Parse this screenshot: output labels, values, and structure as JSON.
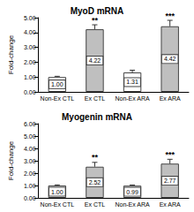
{
  "chart_data": [
    {
      "type": "bar",
      "title": "MyoD mRNA",
      "y_label": "Fold-change",
      "categories": [
        "Non-Ex CTL",
        "Ex CTL",
        "Non-Ex ARA",
        "Ex ARA"
      ],
      "values": [
        1.0,
        4.22,
        1.31,
        4.42
      ],
      "value_labels": [
        "1.00",
        "4.22",
        "1.31",
        "4.42"
      ],
      "errors": [
        0.05,
        0.3,
        0.15,
        0.4
      ],
      "annotations": [
        null,
        "**",
        null,
        "***"
      ],
      "colors": [
        "#ffffff",
        "#bfbfbf",
        "#ffffff",
        "#bfbfbf"
      ],
      "ylim": [
        0,
        5
      ],
      "yticks": [
        {
          "value": 0,
          "label": "0.00"
        },
        {
          "value": 1,
          "label": "1.00"
        },
        {
          "value": 2,
          "label": "2.00"
        },
        {
          "value": 3,
          "label": "3.00"
        },
        {
          "value": 4,
          "label": "4.00"
        },
        {
          "value": 5,
          "label": "5.00"
        }
      ],
      "grid": false,
      "data_labels": true
    },
    {
      "type": "bar",
      "title": "Myogenin mRNA",
      "y_label": "Fold-change",
      "categories": [
        "Non-Ex CTL",
        "Ex CTL",
        "Non-Ex ARA",
        "Ex ARA"
      ],
      "values": [
        1.0,
        2.52,
        0.99,
        2.77
      ],
      "value_labels": [
        "1.00",
        "2.52",
        "0.99",
        "2.77"
      ],
      "errors": [
        0.05,
        0.35,
        0.05,
        0.35
      ],
      "annotations": [
        null,
        "**",
        null,
        "***"
      ],
      "colors": [
        "#ffffff",
        "#bfbfbf",
        "#ffffff",
        "#bfbfbf"
      ],
      "ylim": [
        0,
        6
      ],
      "yticks": [
        {
          "value": 0,
          "label": "0.00"
        },
        {
          "value": 1,
          "label": "1.00"
        },
        {
          "value": 2,
          "label": "2.00"
        },
        {
          "value": 3,
          "label": "3.00"
        },
        {
          "value": 4,
          "label": "4.00"
        },
        {
          "value": 5,
          "label": "5.00"
        },
        {
          "value": 6,
          "label": "6.00"
        }
      ],
      "grid": false,
      "data_labels": true
    }
  ]
}
